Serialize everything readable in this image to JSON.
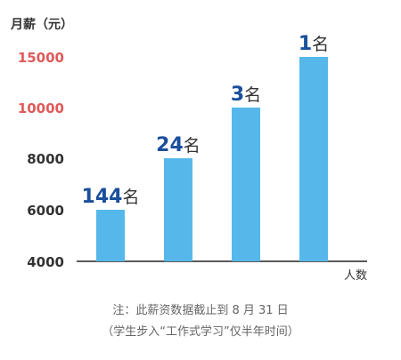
{
  "chart_data": {
    "type": "bar",
    "ylabel": "月薪（元）",
    "xlabel": "人数",
    "y_ticks": [
      "4000",
      "6000",
      "8000",
      "10000",
      "15000"
    ],
    "y_tick_values": [
      4000,
      6000,
      8000,
      10000,
      15000
    ],
    "categories": [
      "",
      "",
      "",
      ""
    ],
    "values": [
      6000,
      8000,
      10000,
      15000
    ],
    "bar_labels": [
      {
        "number": "144",
        "suffix": "名"
      },
      {
        "number": "24",
        "suffix": "名"
      },
      {
        "number": "3",
        "suffix": "名"
      },
      {
        "number": "1",
        "suffix": "名"
      }
    ],
    "grid": false,
    "colors": {
      "bar": "#56b8ea",
      "number": "#1b4f9c",
      "tick": "#e05a5a",
      "text": "#333333"
    }
  },
  "notes": {
    "line1": "注：此薪资数据截止到 8 月 31 日",
    "line2": "（学生步入“工作式学习”仅半年时间）"
  }
}
